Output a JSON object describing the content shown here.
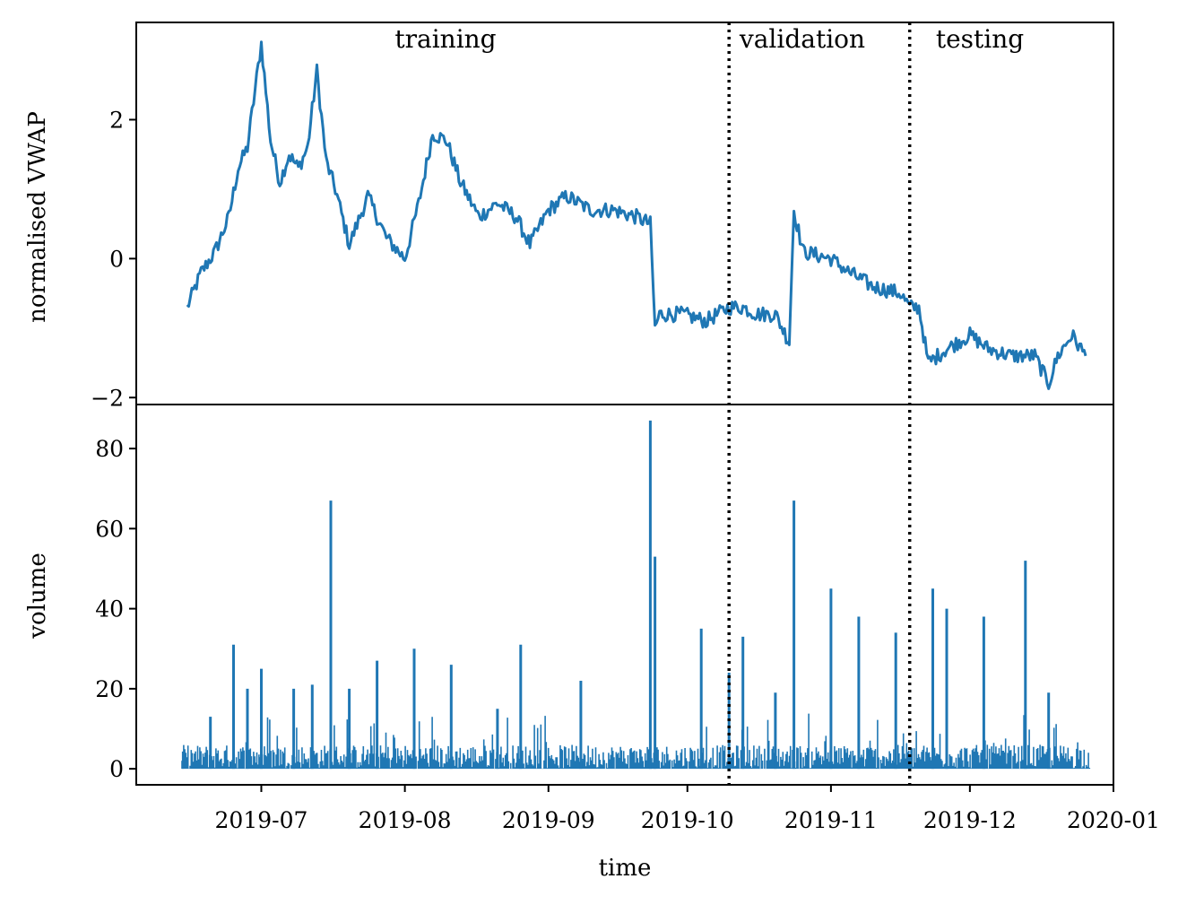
{
  "chart_data": [
    {
      "type": "line",
      "ylabel": "normalised VWAP",
      "xlabel": "",
      "ylim": [
        -2.1,
        3.4
      ],
      "yticks": [
        -2,
        0,
        2
      ],
      "ytick_labels": [
        "−2",
        "0",
        "2"
      ],
      "grid": false,
      "color": "#1f77b4",
      "series": [
        {
          "x": [
            "2019-06-15",
            "2019-06-18",
            "2019-06-21",
            "2019-06-24",
            "2019-06-26",
            "2019-06-28",
            "2019-07-01",
            "2019-07-03",
            "2019-07-05",
            "2019-07-07",
            "2019-07-09",
            "2019-07-11",
            "2019-07-13",
            "2019-07-15",
            "2019-07-17",
            "2019-07-20",
            "2019-07-24",
            "2019-07-28",
            "2019-08-01",
            "2019-08-04",
            "2019-08-07",
            "2019-08-10",
            "2019-08-13",
            "2019-08-17",
            "2019-08-21",
            "2019-08-25",
            "2019-08-28",
            "2019-09-01",
            "2019-09-05",
            "2019-09-10",
            "2019-09-15",
            "2019-09-20",
            "2019-09-23",
            "2019-09-24",
            "2019-09-25",
            "2019-09-30",
            "2019-10-05",
            "2019-10-10",
            "2019-10-13",
            "2019-10-16",
            "2019-10-20",
            "2019-10-23",
            "2019-10-24",
            "2019-10-26",
            "2019-11-01",
            "2019-11-05",
            "2019-11-10",
            "2019-11-16",
            "2019-11-18",
            "2019-11-20",
            "2019-11-22",
            "2019-11-26",
            "2019-12-01",
            "2019-12-05",
            "2019-12-10",
            "2019-12-15",
            "2019-12-18",
            "2019-12-20",
            "2019-12-23",
            "2019-12-26"
          ],
          "y": [
            -0.7,
            -0.2,
            0.1,
            0.6,
            1.3,
            1.6,
            3.1,
            1.7,
            1.1,
            1.5,
            1.3,
            1.6,
            2.7,
            1.4,
            1.0,
            0.2,
            0.9,
            0.3,
            0.0,
            0.8,
            1.8,
            1.7,
            1.1,
            0.6,
            0.8,
            0.6,
            0.2,
            0.7,
            0.9,
            0.7,
            0.7,
            0.6,
            0.5,
            -1.0,
            -0.8,
            -0.8,
            -0.9,
            -0.7,
            -0.7,
            -0.8,
            -0.8,
            -1.2,
            0.7,
            0.1,
            0.0,
            -0.2,
            -0.4,
            -0.5,
            -0.7,
            -0.7,
            -1.5,
            -1.3,
            -1.1,
            -1.3,
            -1.4,
            -1.4,
            -1.8,
            -1.4,
            -1.1,
            -1.4
          ]
        }
      ]
    },
    {
      "type": "bar",
      "ylabel": "volume",
      "xlabel": "time",
      "ylim": [
        -4,
        91
      ],
      "yticks": [
        0,
        20,
        40,
        60,
        80
      ],
      "ytick_labels": [
        "0",
        "20",
        "40",
        "60",
        "80"
      ],
      "xlim": [
        "2019-06-04",
        "2020-01-01"
      ],
      "xticks": [
        "2019-07-01",
        "2019-08-01",
        "2019-09-01",
        "2019-10-01",
        "2019-11-01",
        "2019-12-01",
        "2020-01-01"
      ],
      "xtick_labels": [
        "2019-07",
        "2019-08",
        "2019-09",
        "2019-10",
        "2019-11",
        "2019-12",
        "2020-01"
      ],
      "grid": false,
      "color": "#1f77b4",
      "baseline_noise": 6,
      "series": [
        {
          "x": [
            "2019-06-14",
            "2019-06-20",
            "2019-06-25",
            "2019-06-28",
            "2019-07-01",
            "2019-07-08",
            "2019-07-12",
            "2019-07-16",
            "2019-07-20",
            "2019-07-26",
            "2019-08-03",
            "2019-08-11",
            "2019-08-21",
            "2019-08-26",
            "2019-09-08",
            "2019-09-23",
            "2019-09-24",
            "2019-10-04",
            "2019-10-10",
            "2019-10-13",
            "2019-10-20",
            "2019-10-24",
            "2019-11-01",
            "2019-11-07",
            "2019-11-15",
            "2019-11-23",
            "2019-11-26",
            "2019-12-04",
            "2019-12-13",
            "2019-12-18"
          ],
          "y": [
            2,
            13,
            31,
            20,
            25,
            20,
            21,
            67,
            20,
            27,
            30,
            26,
            15,
            31,
            22,
            87,
            53,
            35,
            24,
            33,
            19,
            67,
            45,
            38,
            34,
            45,
            40,
            38,
            52,
            19
          ]
        }
      ]
    },
    {
      "type": "annotation",
      "regions": [
        {
          "label": "training",
          "from": "2019-06-04",
          "to": "2019-10-10"
        },
        {
          "label": "validation",
          "from": "2019-10-10",
          "to": "2019-11-18"
        },
        {
          "label": "testing",
          "from": "2019-11-18",
          "to": "2020-01-01"
        }
      ],
      "split_dates": [
        "2019-10-10",
        "2019-11-18"
      ],
      "split_style": "dotted"
    }
  ]
}
